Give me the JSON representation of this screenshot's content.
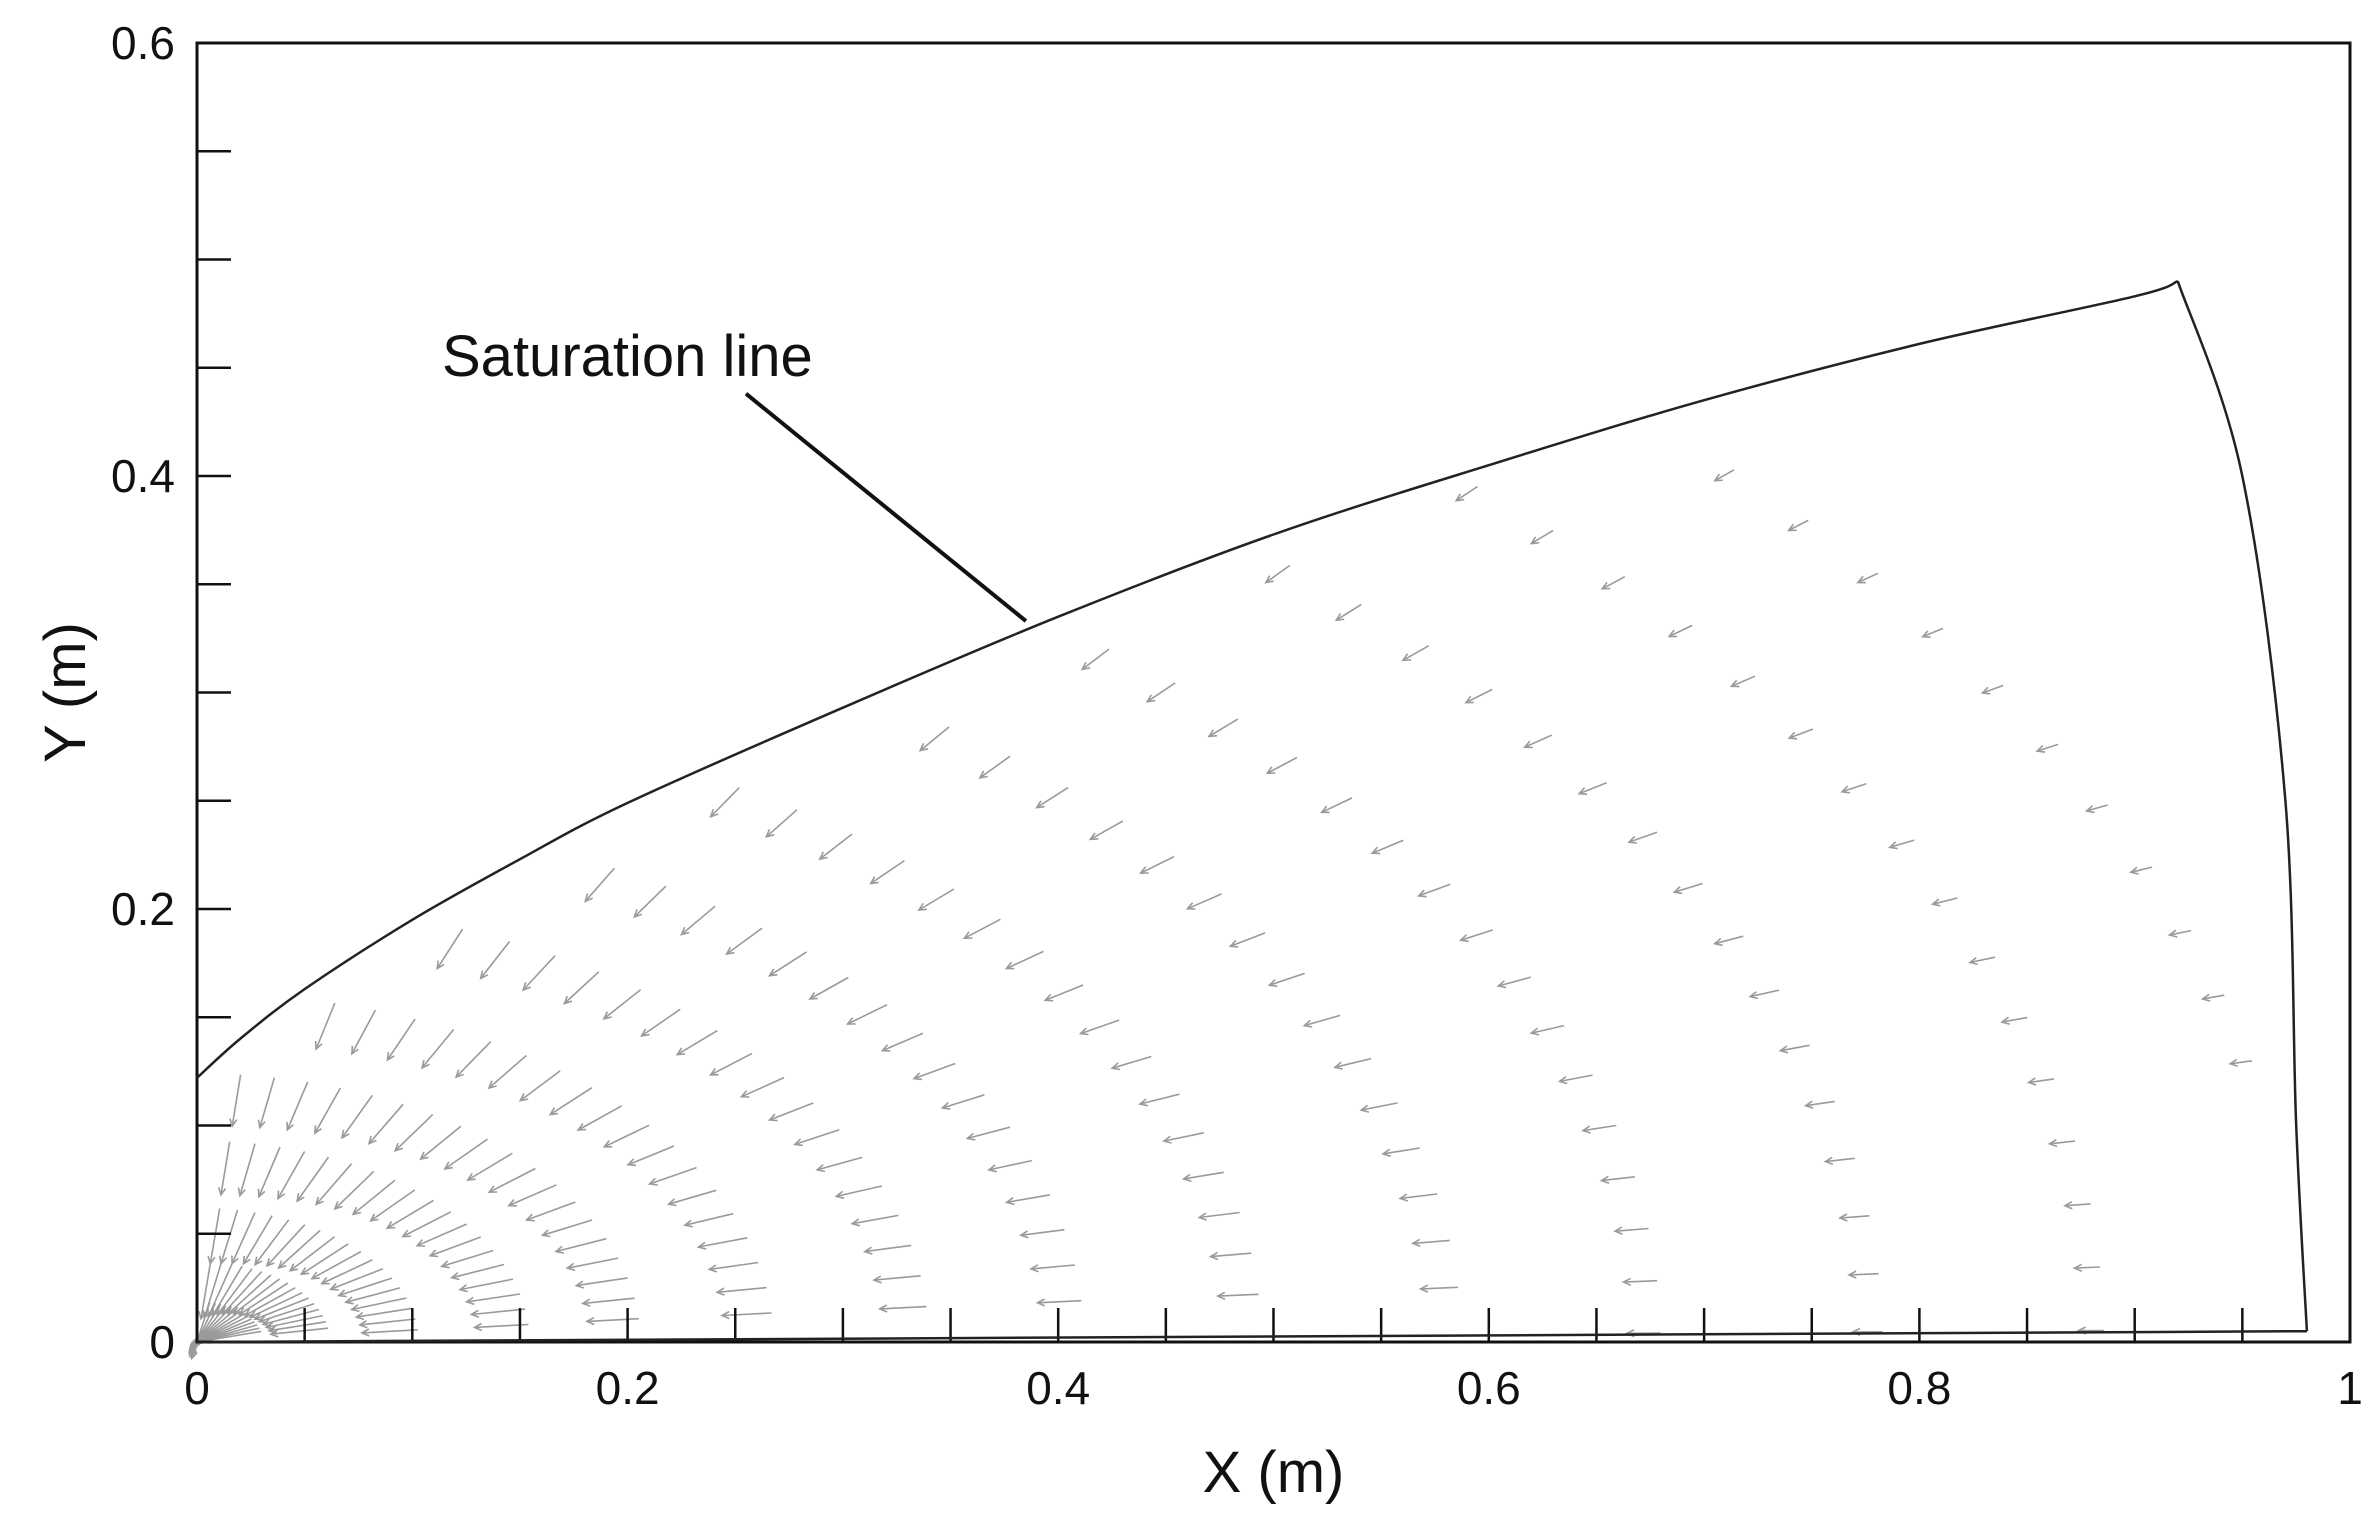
{
  "chart_data": {
    "type": "vector-field",
    "title": "",
    "xlabel": "X (m)",
    "ylabel": "Y (m)",
    "xlim": [
      0,
      1
    ],
    "ylim": [
      0,
      0.6
    ],
    "x_ticks": [
      {
        "value": 0,
        "label": "0"
      },
      {
        "value": 0.2,
        "label": "0.2"
      },
      {
        "value": 0.4,
        "label": "0.4"
      },
      {
        "value": 0.6,
        "label": "0.6"
      },
      {
        "value": 0.8,
        "label": "0.8"
      },
      {
        "value": 1,
        "label": "1"
      }
    ],
    "y_ticks": [
      {
        "value": 0,
        "label": "0"
      },
      {
        "value": 0.2,
        "label": "0.2"
      },
      {
        "value": 0.4,
        "label": "0.4"
      },
      {
        "value": 0.6,
        "label": "0.6"
      }
    ],
    "minor_tick_step_x": 0.05,
    "minor_tick_step_y": 0.05,
    "grid": false,
    "saturation_line": {
      "label": "Saturation line",
      "points": [
        [
          0,
          0.122
        ],
        [
          0.02,
          0.14
        ],
        [
          0.05,
          0.163
        ],
        [
          0.1,
          0.195
        ],
        [
          0.15,
          0.223
        ],
        [
          0.2,
          0.249
        ],
        [
          0.3,
          0.293
        ],
        [
          0.4,
          0.335
        ],
        [
          0.5,
          0.373
        ],
        [
          0.6,
          0.405
        ],
        [
          0.7,
          0.435
        ],
        [
          0.8,
          0.461
        ],
        [
          0.9,
          0.483
        ],
        [
          0.92,
          0.49
        ]
      ]
    },
    "seepage_face": {
      "points": [
        [
          0.92,
          0.49
        ],
        [
          0.95,
          0.4
        ],
        [
          0.97,
          0.25
        ],
        [
          0.975,
          0.1
        ],
        [
          0.98,
          0.005
        ]
      ]
    },
    "base_line": {
      "points": [
        [
          0,
          0
        ],
        [
          0.98,
          0.005
        ]
      ]
    },
    "label_leader": {
      "from": [
        0.255,
        0.438
      ],
      "to": [
        0.385,
        0.333
      ]
    },
    "velocity_field": {
      "direction": "toward drain at origin",
      "sink": [
        0,
        0
      ],
      "arrow_color": "#9a9a9a"
    }
  },
  "colors": {
    "axes": "#111111",
    "curve": "#222222",
    "arrows": "#9a9a9a",
    "background": "#ffffff"
  }
}
